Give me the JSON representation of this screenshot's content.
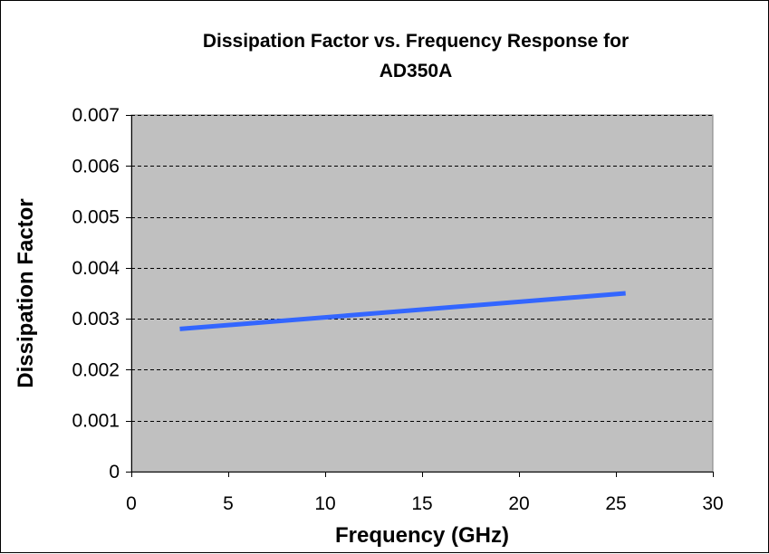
{
  "chart_data": {
    "type": "line",
    "title": "Dissipation Factor vs. Frequency Response for AD350A",
    "title_lines": [
      "Dissipation Factor vs. Frequency Response for",
      "AD350A"
    ],
    "xlabel": "Frequency (GHz)",
    "ylabel": "Dissipation Factor",
    "xlim": [
      0,
      30
    ],
    "ylim": [
      0,
      0.007
    ],
    "x_ticks": [
      0,
      5,
      10,
      15,
      20,
      25,
      30
    ],
    "x_tick_labels": [
      "0",
      "5",
      "10",
      "15",
      "20",
      "25",
      "30"
    ],
    "y_ticks": [
      0,
      0.001,
      0.002,
      0.003,
      0.004,
      0.005,
      0.006,
      0.007
    ],
    "y_tick_labels": [
      "0",
      "0.001",
      "0.002",
      "0.003",
      "0.004",
      "0.005",
      "0.006",
      "0.007"
    ],
    "grid": "horizontal-dashed",
    "legend": "none",
    "plot_background": "#c0c0c0",
    "series": [
      {
        "color": "#3366ff",
        "x": [
          2.5,
          25.5
        ],
        "y": [
          0.0028,
          0.0035
        ]
      }
    ]
  }
}
